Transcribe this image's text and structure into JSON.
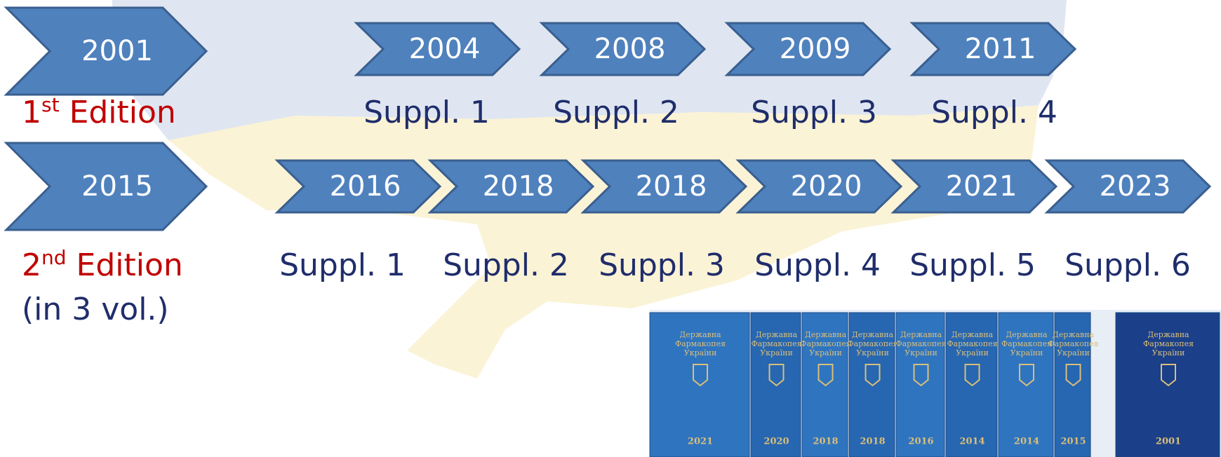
{
  "editions": [
    {
      "year": "2001",
      "label": {
        "number": "1",
        "suffix": "st",
        "text": " Edition"
      },
      "supplements": [
        {
          "year": "2004",
          "label": "Suppl. 1"
        },
        {
          "year": "2008",
          "label": "Suppl. 2"
        },
        {
          "year": "2009",
          "label": "Suppl. 3"
        },
        {
          "year": "2011",
          "label": "Suppl. 4"
        }
      ]
    },
    {
      "year": "2015",
      "label": {
        "number": "2",
        "suffix": "nd",
        "text": " Edition"
      },
      "note": "(in 3 vol.)",
      "supplements": [
        {
          "year": "2016",
          "label": "Suppl. 1"
        },
        {
          "year": "2018",
          "label": "Suppl. 2"
        },
        {
          "year": "2018",
          "label": "Suppl. 3"
        },
        {
          "year": "2020",
          "label": "Suppl. 4"
        },
        {
          "year": "2021",
          "label": "Suppl. 5"
        },
        {
          "year": "2023",
          "label": "Suppl. 6"
        }
      ]
    }
  ],
  "book_title": [
    "Державна",
    "Фармакопея",
    "України"
  ],
  "books": [
    "2021",
    "2020",
    "2018",
    "2018",
    "2016",
    "2014",
    "2014",
    "2015",
    "2001"
  ]
}
